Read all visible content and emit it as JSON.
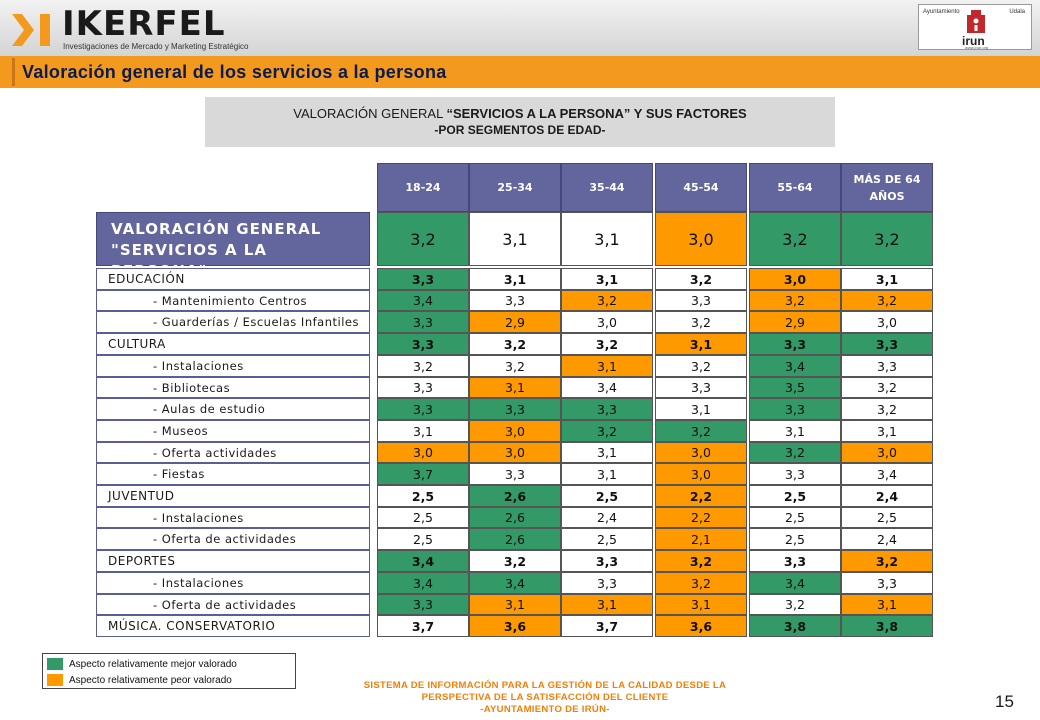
{
  "brand": {
    "name": "IKERFEL",
    "tagline": "Investigaciones de Mercado y Marketing Estratégico",
    "partner_left": "Ayuntamiento",
    "partner_right": "Udala",
    "partner_name": "irun",
    "partner_url": "www.irun.org"
  },
  "page_title": "Valoración general de los servicios a la persona",
  "subtitle": {
    "line1_prefix": "VALORACIÓN GENERAL ",
    "line1_bold": "“SERVICIOS A LA PERSONA” Y SUS FACTORES",
    "line2": "-POR SEGMENTOS DE EDAD-"
  },
  "table": {
    "columns": [
      "18-24",
      "25-34",
      "35-44",
      "45-54",
      "55-64",
      "MÁS DE 64 AÑOS"
    ],
    "columns_display": [
      [
        "18-24"
      ],
      [
        "25-34"
      ],
      [
        "35-44"
      ],
      [
        "45-54"
      ],
      [
        "55-64"
      ],
      [
        "MÁS DE 64",
        "AÑOS"
      ]
    ],
    "header_row": {
      "label_line1": "VALORACIÓN GENERAL",
      "label_line2": "\"SERVICIOS A LA PERSONA\"",
      "values": [
        "3,2",
        "3,1",
        "3,1",
        "3,0",
        "3,2",
        "3,2"
      ],
      "status": [
        "g",
        "",
        "",
        "o",
        "g",
        "g"
      ]
    },
    "rows": [
      {
        "label": "EDUCACIÓN",
        "level": "main",
        "values": [
          "3,3",
          "3,1",
          "3,1",
          "3,2",
          "3,0",
          "3,1"
        ],
        "status": [
          "g",
          "",
          "",
          "",
          "o",
          ""
        ]
      },
      {
        "label": "- Mantenimiento Centros",
        "level": "sub",
        "values": [
          "3,4",
          "3,3",
          "3,2",
          "3,3",
          "3,2",
          "3,2"
        ],
        "status": [
          "g",
          "",
          "o",
          "",
          "o",
          "o"
        ]
      },
      {
        "label": "- Guarderías / Escuelas Infantiles",
        "level": "sub",
        "values": [
          "3,3",
          "2,9",
          "3,0",
          "3,2",
          "2,9",
          "3,0"
        ],
        "status": [
          "g",
          "o",
          "",
          "",
          "o",
          ""
        ]
      },
      {
        "label": "CULTURA",
        "level": "main",
        "values": [
          "3,3",
          "3,2",
          "3,2",
          "3,1",
          "3,3",
          "3,3"
        ],
        "status": [
          "g",
          "",
          "",
          "o",
          "g",
          "g"
        ]
      },
      {
        "label": "- Instalaciones",
        "level": "sub",
        "values": [
          "3,2",
          "3,2",
          "3,1",
          "3,2",
          "3,4",
          "3,3"
        ],
        "status": [
          "",
          "",
          "o",
          "",
          "g",
          ""
        ]
      },
      {
        "label": "- Bibliotecas",
        "level": "sub",
        "values": [
          "3,3",
          "3,1",
          "3,4",
          "3,3",
          "3,5",
          "3,2"
        ],
        "status": [
          "",
          "o",
          "",
          "",
          "g",
          ""
        ]
      },
      {
        "label": "- Aulas de estudio",
        "level": "sub",
        "values": [
          "3,3",
          "3,3",
          "3,3",
          "3,1",
          "3,3",
          "3,2"
        ],
        "status": [
          "g",
          "g",
          "g",
          "",
          "g",
          ""
        ]
      },
      {
        "label": "- Museos",
        "level": "sub",
        "values": [
          "3,1",
          "3,0",
          "3,2",
          "3,2",
          "3,1",
          "3,1"
        ],
        "status": [
          "",
          "o",
          "g",
          "g",
          "",
          ""
        ]
      },
      {
        "label": "- Oferta actividades",
        "level": "sub",
        "values": [
          "3,0",
          "3,0",
          "3,1",
          "3,0",
          "3,2",
          "3,0"
        ],
        "status": [
          "o",
          "o",
          "",
          "o",
          "g",
          "o"
        ]
      },
      {
        "label": "- Fiestas",
        "level": "sub",
        "values": [
          "3,7",
          "3,3",
          "3,1",
          "3,0",
          "3,3",
          "3,4"
        ],
        "status": [
          "g",
          "",
          "",
          "o",
          "",
          ""
        ]
      },
      {
        "label": "JUVENTUD",
        "level": "main",
        "values": [
          "2,5",
          "2,6",
          "2,5",
          "2,2",
          "2,5",
          "2,4"
        ],
        "status": [
          "",
          "g",
          "",
          "o",
          "",
          ""
        ]
      },
      {
        "label": "- Instalaciones",
        "level": "sub",
        "values": [
          "2,5",
          "2,6",
          "2,4",
          "2,2",
          "2,5",
          "2,5"
        ],
        "status": [
          "",
          "g",
          "",
          "o",
          "",
          ""
        ]
      },
      {
        "label": "- Oferta de actividades",
        "level": "sub",
        "values": [
          "2,5",
          "2,6",
          "2,5",
          "2,1",
          "2,5",
          "2,4"
        ],
        "status": [
          "",
          "g",
          "",
          "o",
          "",
          ""
        ]
      },
      {
        "label": "DEPORTES",
        "level": "main",
        "values": [
          "3,4",
          "3,2",
          "3,3",
          "3,2",
          "3,3",
          "3,2"
        ],
        "status": [
          "g",
          "",
          "",
          "o",
          "",
          "o"
        ]
      },
      {
        "label": "- Instalaciones",
        "level": "sub",
        "values": [
          "3,4",
          "3,4",
          "3,3",
          "3,2",
          "3,4",
          "3,3"
        ],
        "status": [
          "g",
          "g",
          "",
          "o",
          "g",
          ""
        ]
      },
      {
        "label": "- Oferta de actividades",
        "level": "sub",
        "values": [
          "3,3",
          "3,1",
          "3,1",
          "3,1",
          "3,2",
          "3,1"
        ],
        "status": [
          "g",
          "o",
          "o",
          "o",
          "",
          "o"
        ]
      },
      {
        "label": "MÚSICA. CONSERVATORIO",
        "level": "main",
        "values": [
          "3,7",
          "3,6",
          "3,7",
          "3,6",
          "3,8",
          "3,8"
        ],
        "status": [
          "",
          "o",
          "",
          "o",
          "g",
          "g"
        ]
      }
    ]
  },
  "legend": {
    "better": "Aspecto relativamente mejor valorado",
    "worse": "Aspecto relativamente peor valorado",
    "better_color": "#339966",
    "worse_color": "#ff9900"
  },
  "footer": {
    "line1": "SISTEMA DE INFORMACIÓN PARA LA GESTIÓN DE LA CALIDAD DESDE LA",
    "line2": "PERSPECTIVA DE LA SATISFACCIÓN DEL CLIENTE",
    "line3": "-AYUNTAMIENTO DE IRÚN-"
  },
  "page_number": "15"
}
